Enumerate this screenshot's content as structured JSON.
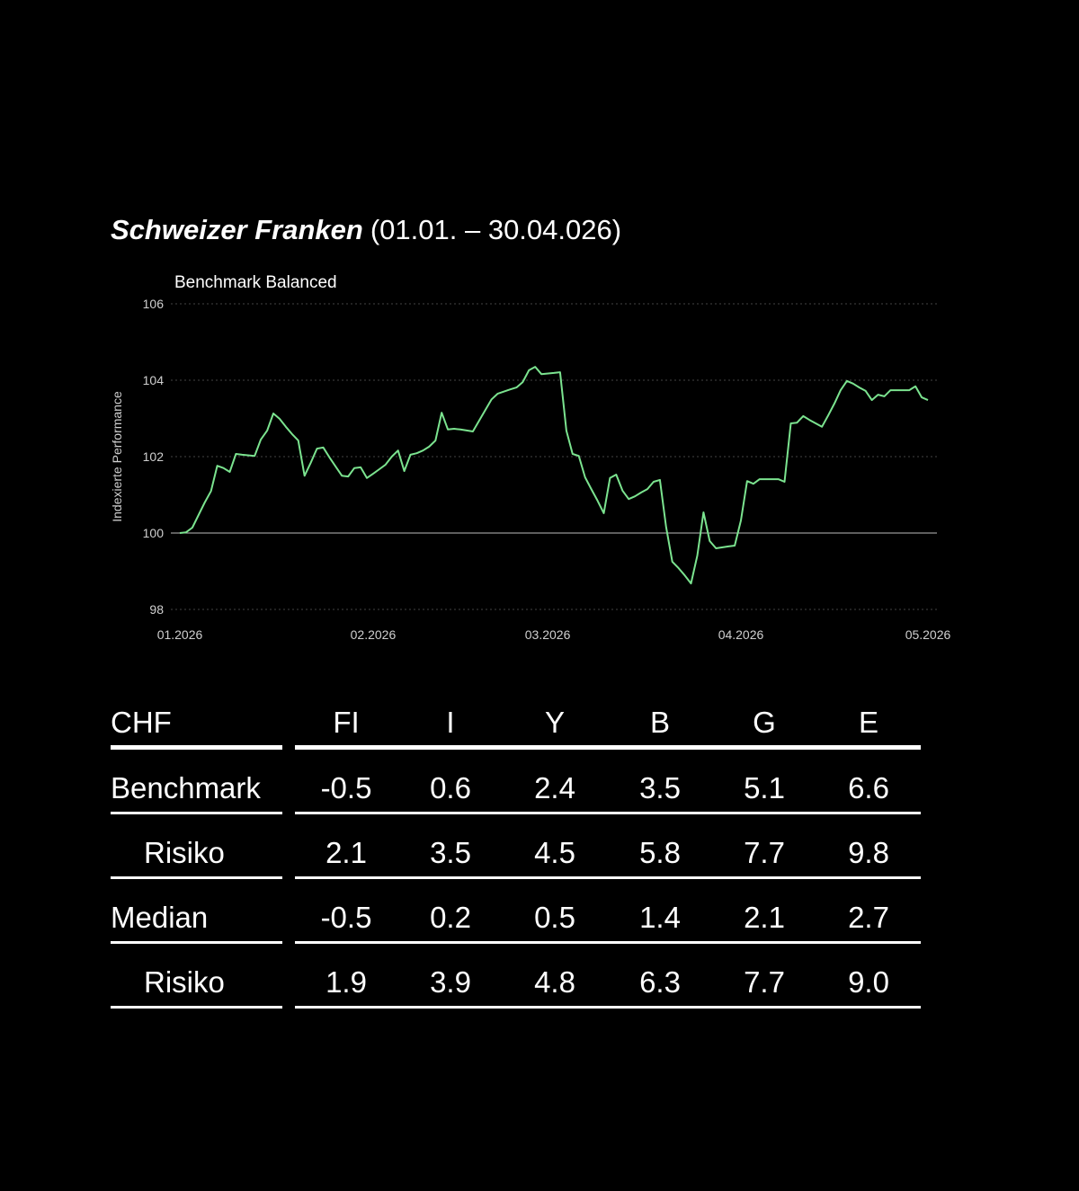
{
  "header": {
    "title": "Schweizer Franken",
    "period": "(01.01. – 30.04.026)"
  },
  "chart_data": {
    "type": "line",
    "y_label": "Indexierte Performance",
    "x": [
      0,
      1,
      2,
      3,
      4,
      5,
      6,
      7,
      8,
      9,
      10,
      12,
      13,
      14,
      15,
      16,
      17,
      18,
      19,
      20,
      21,
      22,
      23,
      24,
      25,
      26,
      27,
      28,
      29,
      30,
      31,
      32,
      33,
      34,
      35,
      36,
      37,
      38,
      39,
      40,
      41,
      42,
      43,
      44,
      45,
      47,
      48,
      49,
      50,
      51,
      53,
      54,
      55,
      56,
      57,
      58,
      60,
      61,
      62,
      63,
      64,
      65,
      66,
      67,
      68,
      69,
      70,
      71,
      72,
      73,
      74,
      75,
      76,
      77,
      78,
      79,
      80,
      81,
      82,
      83,
      84,
      85,
      86,
      88,
      89,
      90,
      91,
      92,
      93,
      94,
      96,
      97,
      98,
      99,
      100,
      101,
      103,
      104,
      105,
      106,
      107,
      108,
      109,
      110,
      111,
      112,
      113,
      114,
      115,
      117,
      118,
      119,
      120
    ],
    "series": [
      {
        "name": "Benchmark Balanced",
        "color": "#7be38f",
        "values": [
          100.0,
          100.02,
          100.14,
          100.47,
          100.8,
          101.1,
          101.76,
          101.7,
          101.6,
          102.07,
          102.05,
          102.02,
          102.45,
          102.68,
          103.13,
          102.99,
          102.78,
          102.59,
          102.42,
          101.5,
          101.84,
          102.21,
          102.24,
          101.98,
          101.74,
          101.5,
          101.48,
          101.7,
          101.72,
          101.44,
          101.55,
          101.67,
          101.79,
          102.0,
          102.16,
          101.62,
          102.05,
          102.09,
          102.16,
          102.26,
          102.42,
          103.15,
          102.71,
          102.73,
          102.71,
          102.66,
          102.94,
          103.22,
          103.5,
          103.65,
          103.76,
          103.81,
          103.95,
          104.26,
          104.35,
          104.16,
          104.19,
          104.21,
          102.68,
          102.07,
          102.02,
          101.46,
          101.15,
          100.85,
          100.52,
          101.44,
          101.53,
          101.11,
          100.89,
          100.96,
          101.06,
          101.15,
          101.34,
          101.39,
          100.16,
          99.25,
          99.08,
          98.89,
          98.68,
          99.41,
          100.54,
          99.79,
          99.6,
          99.65,
          99.67,
          100.33,
          101.36,
          101.29,
          101.41,
          101.41,
          101.41,
          101.34,
          102.87,
          102.89,
          103.06,
          102.96,
          102.78,
          103.08,
          103.39,
          103.74,
          103.98,
          103.91,
          103.81,
          103.72,
          103.48,
          103.62,
          103.58,
          103.74,
          103.74,
          103.74,
          103.84,
          103.55,
          103.48
        ]
      }
    ],
    "xlim": [
      0,
      120
    ],
    "xticks": [
      {
        "value": 0,
        "label": "01.2026"
      },
      {
        "value": 31,
        "label": "02.2026"
      },
      {
        "value": 59,
        "label": "03.2026"
      },
      {
        "value": 90,
        "label": "04.2026"
      },
      {
        "value": 120,
        "label": "05.2026"
      }
    ],
    "ylim": [
      98,
      106
    ],
    "yticks": [
      98,
      100,
      102,
      104,
      106
    ],
    "baseline": 100,
    "grid": true
  },
  "table": {
    "header": [
      "CHF",
      "FI",
      "I",
      "Y",
      "B",
      "G",
      "E"
    ],
    "rows": [
      [
        "Benchmark",
        "-0.5",
        "0.6",
        "2.4",
        "3.5",
        "5.1",
        "6.6"
      ],
      [
        "Risiko",
        "2.1",
        "3.5",
        "4.5",
        "5.8",
        "7.7",
        "9.8"
      ],
      [
        "Median",
        "-0.5",
        "0.2",
        "0.5",
        "1.4",
        "2.1",
        "2.7"
      ],
      [
        "Risiko",
        "1.9",
        "3.9",
        "4.8",
        "6.3",
        "7.7",
        "9.0"
      ]
    ],
    "indented_rows": [
      1,
      3
    ]
  }
}
